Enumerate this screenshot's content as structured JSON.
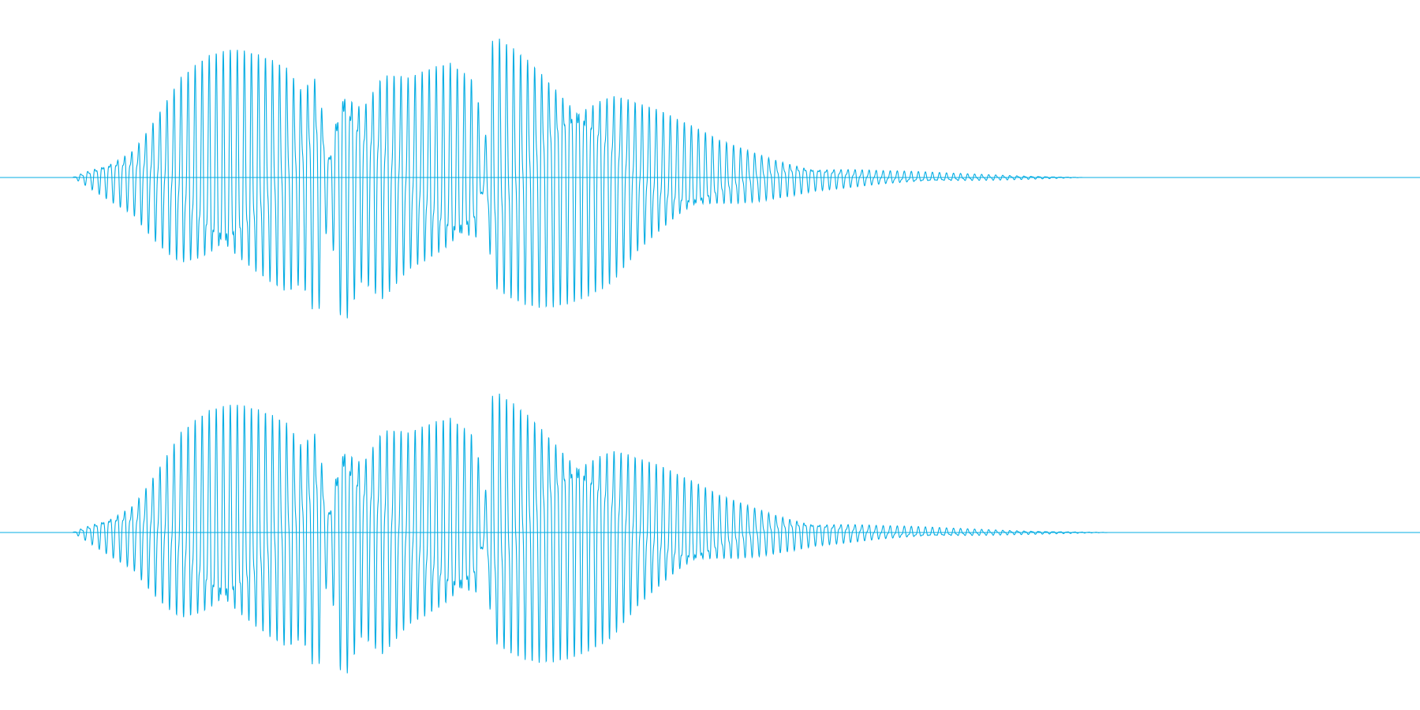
{
  "colors": {
    "background": "#ffffff",
    "waveform": "#05ade3"
  },
  "waveform": {
    "duration_s": 2.0,
    "cycles": 190,
    "channels": [
      {
        "name": "",
        "envelope": [
          [
            0,
            0.0
          ],
          [
            0.045,
            0.25
          ],
          [
            0.08,
            0.7
          ],
          [
            0.1,
            0.8
          ],
          [
            0.12,
            0.84
          ],
          [
            0.16,
            0.84
          ],
          [
            0.17,
            0.73
          ],
          [
            0.182,
            0.97
          ],
          [
            0.19,
            0.2
          ],
          [
            0.2,
            1.0
          ],
          [
            0.215,
            0.68
          ],
          [
            0.23,
            0.85
          ],
          [
            0.25,
            0.72
          ],
          [
            0.28,
            0.75
          ],
          [
            0.3,
            0.62
          ],
          [
            0.305,
            0.1
          ],
          [
            0.312,
            0.97
          ],
          [
            0.34,
            0.92
          ],
          [
            0.37,
            0.82
          ],
          [
            0.4,
            0.72
          ],
          [
            0.42,
            0.55
          ],
          [
            0.45,
            0.38
          ],
          [
            0.48,
            0.25
          ],
          [
            0.52,
            0.15
          ],
          [
            0.55,
            0.09
          ],
          [
            0.6,
            0.05
          ],
          [
            0.65,
            0.03
          ],
          [
            0.7,
            0.015
          ],
          [
            0.75,
            0.0
          ],
          [
            1.0,
            0.0
          ]
        ]
      },
      {
        "name": "",
        "envelope": [
          [
            0,
            0.0
          ],
          [
            0.045,
            0.25
          ],
          [
            0.08,
            0.7
          ],
          [
            0.1,
            0.8
          ],
          [
            0.12,
            0.84
          ],
          [
            0.16,
            0.84
          ],
          [
            0.17,
            0.73
          ],
          [
            0.182,
            0.97
          ],
          [
            0.19,
            0.2
          ],
          [
            0.2,
            1.0
          ],
          [
            0.215,
            0.68
          ],
          [
            0.23,
            0.85
          ],
          [
            0.25,
            0.72
          ],
          [
            0.28,
            0.75
          ],
          [
            0.3,
            0.62
          ],
          [
            0.305,
            0.1
          ],
          [
            0.312,
            0.97
          ],
          [
            0.34,
            0.92
          ],
          [
            0.37,
            0.82
          ],
          [
            0.4,
            0.72
          ],
          [
            0.42,
            0.55
          ],
          [
            0.45,
            0.38
          ],
          [
            0.48,
            0.25
          ],
          [
            0.52,
            0.15
          ],
          [
            0.55,
            0.09
          ],
          [
            0.6,
            0.05
          ],
          [
            0.65,
            0.03
          ],
          [
            0.7,
            0.015
          ],
          [
            0.77,
            0.0
          ],
          [
            1.0,
            0.0
          ]
        ]
      }
    ]
  }
}
